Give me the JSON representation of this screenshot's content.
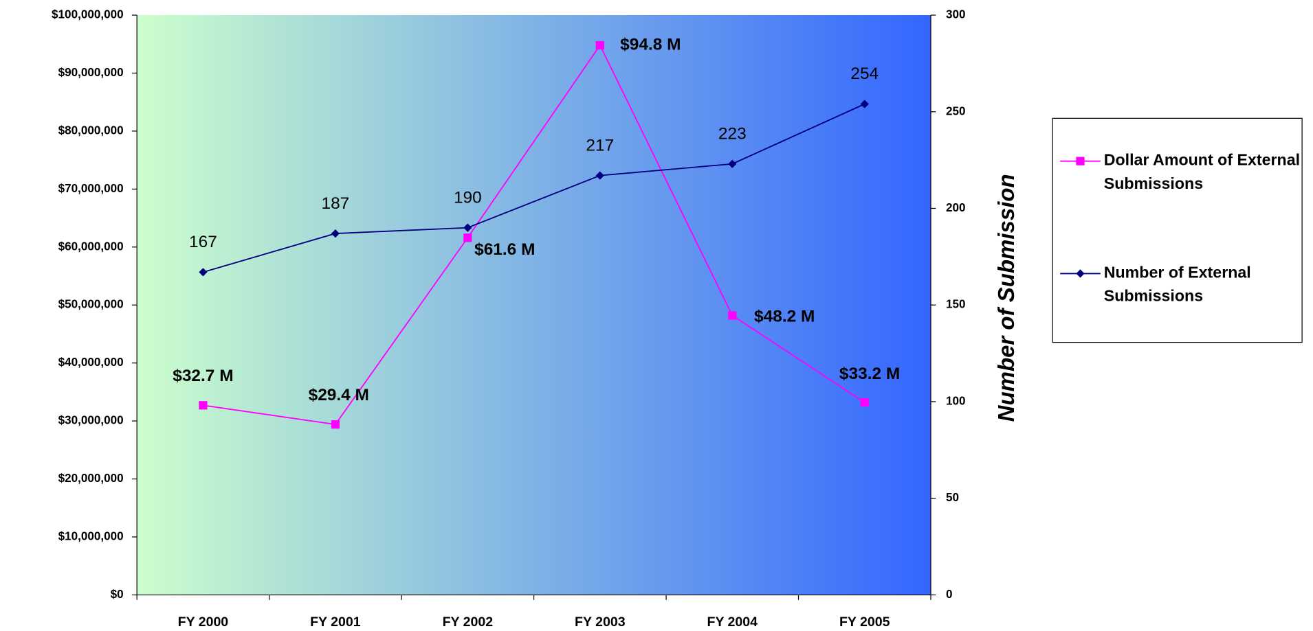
{
  "chart_data": {
    "type": "line",
    "categories": [
      "FY 2000",
      "FY 2001",
      "FY 2002",
      "FY 2003",
      "FY 2004",
      "FY 2005"
    ],
    "series": [
      {
        "name": "Dollar Amount of External Submissions",
        "color": "#ff00ff",
        "marker": "square",
        "values": [
          32700000,
          29400000,
          61600000,
          94800000,
          48200000,
          33200000
        ],
        "value_labels": [
          "$32.7 M",
          "$29.4 M",
          "$61.6 M",
          "$94.8 M",
          "$48.2 M",
          "$33.2 M"
        ]
      },
      {
        "name": "Number of External Submissions",
        "color": "#000080",
        "marker": "diamond",
        "axis": "y2",
        "values": [
          167,
          187,
          190,
          217,
          223,
          254
        ]
      }
    ],
    "ylim": [
      0,
      100000000
    ],
    "yticks": [
      {
        "value": 0,
        "label": "$0"
      },
      {
        "value": 10000000,
        "label": "$10,000,000"
      },
      {
        "value": 20000000,
        "label": "$20,000,000"
      },
      {
        "value": 30000000,
        "label": "$30,000,000"
      },
      {
        "value": 40000000,
        "label": "$40,000,000"
      },
      {
        "value": 50000000,
        "label": "$50,000,000"
      },
      {
        "value": 60000000,
        "label": "$60,000,000"
      },
      {
        "value": 70000000,
        "label": "$70,000,000"
      },
      {
        "value": 80000000,
        "label": "$80,000,000"
      },
      {
        "value": 90000000,
        "label": "$90,000,000"
      },
      {
        "value": 100000000,
        "label": "$100,000,000"
      }
    ],
    "y2lim": [
      0,
      300
    ],
    "y2ticks": [
      0,
      50,
      100,
      150,
      200,
      250,
      300
    ],
    "y2label": "Number of Submission",
    "legend": "right",
    "background": [
      "#ccffcc",
      "#3366ff"
    ]
  }
}
